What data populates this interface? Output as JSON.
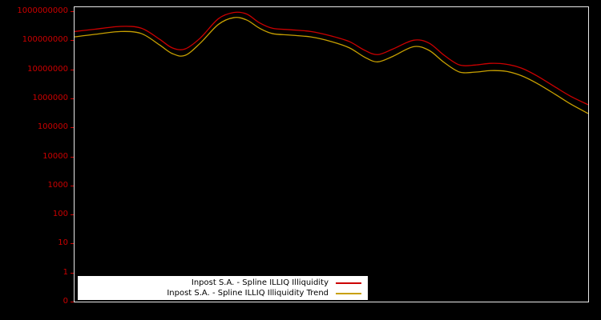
{
  "page": {
    "background": "#000000"
  },
  "chart_data": {
    "type": "line",
    "title": "",
    "background": "#000000",
    "axis_border_color": "#e8e8e8",
    "tick_label_color": "#cc0000",
    "grid": false,
    "y_scale": "log-with-zero-floor",
    "y_ticks": [
      {
        "label": "1000000000",
        "value": 1000000000
      },
      {
        "label": "100000000",
        "value": 100000000
      },
      {
        "label": "10000000",
        "value": 10000000
      },
      {
        "label": "1000000",
        "value": 1000000
      },
      {
        "label": "100000",
        "value": 100000
      },
      {
        "label": "10000",
        "value": 10000
      },
      {
        "label": "1000",
        "value": 1000
      },
      {
        "label": "100",
        "value": 100
      },
      {
        "label": "10",
        "value": 10
      },
      {
        "label": "1",
        "value": 1
      },
      {
        "label": "0",
        "value": 0
      }
    ],
    "x_ticks": [],
    "x": [
      0,
      0.04,
      0.09,
      0.13,
      0.165,
      0.19,
      0.215,
      0.245,
      0.28,
      0.31,
      0.335,
      0.36,
      0.385,
      0.42,
      0.46,
      0.5,
      0.535,
      0.565,
      0.59,
      0.62,
      0.66,
      0.69,
      0.72,
      0.75,
      0.78,
      0.81,
      0.84,
      0.87,
      0.9,
      0.935,
      0.965,
      1
    ],
    "series": [
      {
        "name": "Inpost S.A. - Spline ILLIQ Illiquidity",
        "color": "#cc0000",
        "values": [
          200000000,
          240000000,
          300000000,
          260000000,
          110000000,
          55000000,
          50000000,
          120000000,
          550000000,
          900000000,
          800000000,
          400000000,
          260000000,
          230000000,
          200000000,
          140000000,
          90000000,
          45000000,
          32000000,
          50000000,
          100000000,
          80000000,
          30000000,
          14000000,
          14000000,
          16000000,
          15000000,
          11000000,
          6000000,
          2500000,
          1200000,
          600000
        ]
      },
      {
        "name": "Inpost S.A. - Spline ILLIQ Illiquidity Trend",
        "color": "#c8a000",
        "values": [
          130000000,
          160000000,
          200000000,
          170000000,
          70000000,
          35000000,
          30000000,
          80000000,
          350000000,
          600000000,
          500000000,
          260000000,
          170000000,
          150000000,
          130000000,
          90000000,
          55000000,
          26000000,
          18000000,
          28000000,
          60000000,
          45000000,
          17000000,
          8000000,
          8000000,
          9000000,
          8500000,
          6000000,
          3300000,
          1400000,
          650000,
          300000
        ]
      }
    ],
    "legend": {
      "position": "inside-bottom-left",
      "background": "#ffffff",
      "text_color": "#000000"
    }
  }
}
